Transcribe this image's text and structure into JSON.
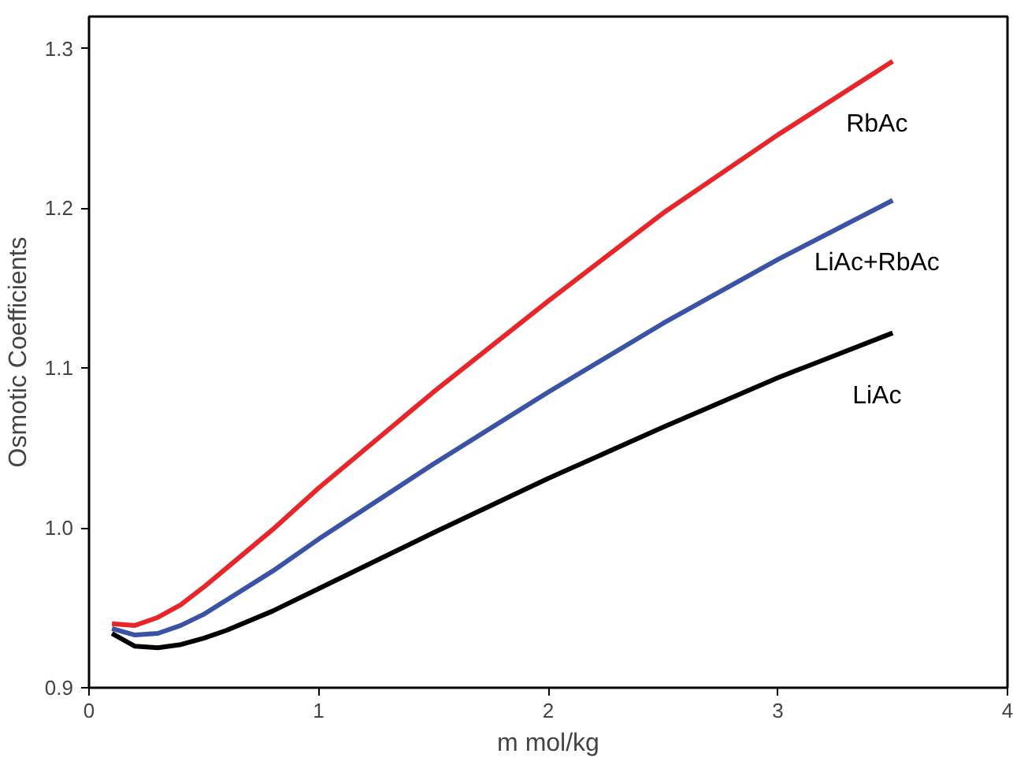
{
  "chart_data": {
    "type": "line",
    "xlabel": "m mol/kg",
    "ylabel": "Osmotic Coefficients",
    "xlim": [
      0,
      4
    ],
    "ylim": [
      0.9,
      1.32
    ],
    "xticks": [
      0,
      1,
      2,
      3,
      4
    ],
    "yticks": [
      0.9,
      {
        "value": 1,
        "label": "1.0"
      },
      1.1,
      1.2,
      1.3
    ],
    "x": [
      0.1,
      0.2,
      0.3,
      0.4,
      0.5,
      0.6,
      0.8,
      1.0,
      1.5,
      2.0,
      2.5,
      3.0,
      3.5
    ],
    "grid": false,
    "legend": false,
    "marker": "none",
    "line_style": "solid",
    "series": [
      {
        "name": "RbAc",
        "color": "#e8262a",
        "values": [
          0.94,
          0.939,
          0.944,
          0.952,
          0.963,
          0.975,
          0.999,
          1.025,
          1.085,
          1.142,
          1.197,
          1.246,
          1.292
        ]
      },
      {
        "name": "LiAc+RbAc",
        "color": "#3a53a4",
        "values": [
          0.937,
          0.933,
          0.934,
          0.939,
          0.946,
          0.955,
          0.973,
          0.993,
          1.04,
          1.085,
          1.128,
          1.168,
          1.205
        ]
      },
      {
        "name": "LiAc",
        "color": "#000000",
        "values": [
          0.934,
          0.926,
          0.925,
          0.927,
          0.931,
          0.936,
          0.948,
          0.962,
          0.997,
          1.031,
          1.063,
          1.094,
          1.122
        ]
      }
    ]
  }
}
